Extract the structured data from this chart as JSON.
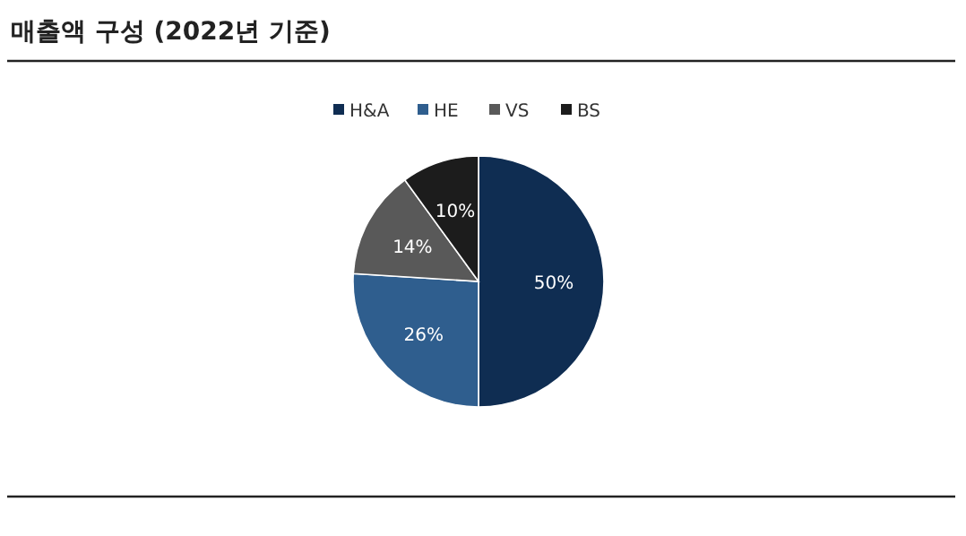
{
  "chart_data": {
    "type": "pie",
    "title": "매출액 구성 (2022년 기준)",
    "categories": [
      "H&A",
      "HE",
      "VS",
      "BS"
    ],
    "values": [
      50,
      26,
      14,
      10
    ],
    "colors": [
      "#0f2d52",
      "#2f5e8e",
      "#595959",
      "#1c1c1c"
    ],
    "value_labels": [
      "50%",
      "26%",
      "14%",
      "10%"
    ],
    "legend": "top"
  }
}
